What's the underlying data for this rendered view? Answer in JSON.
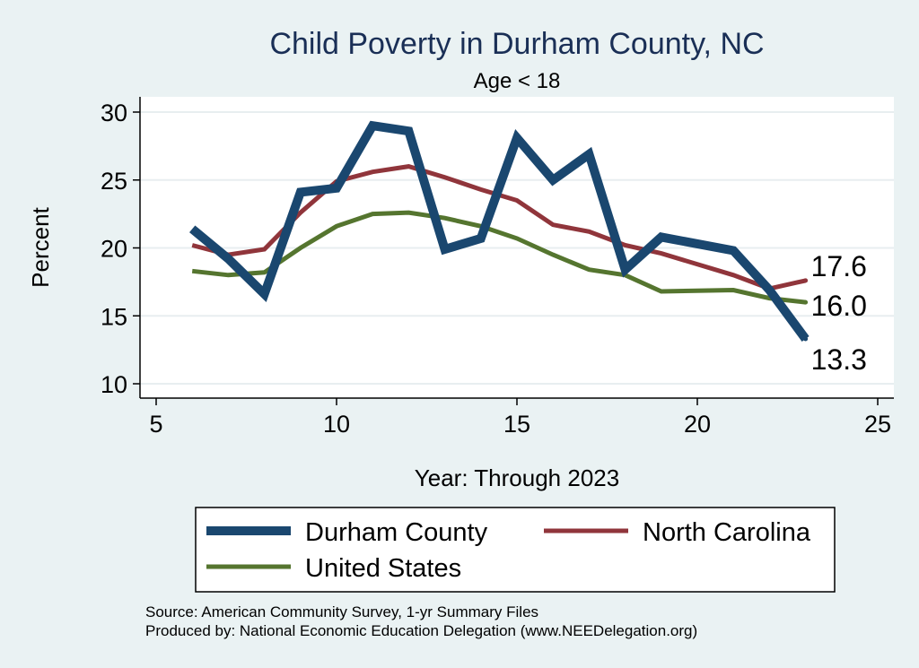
{
  "chart_data": {
    "type": "line",
    "title": "Child Poverty in Durham County, NC",
    "subtitle": "Age < 18",
    "xlabel": "Year: Through 2023",
    "ylabel": "Percent",
    "xlim": [
      5,
      25
    ],
    "ylim": [
      10,
      30
    ],
    "xticks": [
      5,
      10,
      15,
      20,
      25
    ],
    "yticks": [
      10,
      15,
      20,
      25,
      30
    ],
    "grid": true,
    "legend_position": "bottom",
    "series": [
      {
        "name": "Durham County",
        "color": "#1a476f",
        "points": [
          [
            6,
            21.4
          ],
          [
            7,
            19.2
          ],
          [
            8,
            16.6
          ],
          [
            9,
            24.1
          ],
          [
            10,
            24.4
          ],
          [
            11,
            29.0
          ],
          [
            12,
            28.6
          ],
          [
            13,
            19.9
          ],
          [
            14,
            20.7
          ],
          [
            15,
            28.1
          ],
          [
            16,
            25.0
          ],
          [
            17,
            26.9
          ],
          [
            18,
            18.4
          ],
          [
            19,
            20.8
          ],
          [
            21,
            19.8
          ],
          [
            22,
            16.9
          ],
          [
            23,
            13.3
          ]
        ],
        "end_label": "13.3"
      },
      {
        "name": "North Carolina",
        "color": "#90353b",
        "points": [
          [
            6,
            20.2
          ],
          [
            7,
            19.5
          ],
          [
            8,
            19.9
          ],
          [
            9,
            22.6
          ],
          [
            10,
            24.9
          ],
          [
            11,
            25.6
          ],
          [
            12,
            26.0
          ],
          [
            13,
            25.2
          ],
          [
            14,
            24.3
          ],
          [
            15,
            23.5
          ],
          [
            16,
            21.7
          ],
          [
            17,
            21.2
          ],
          [
            18,
            20.2
          ],
          [
            19,
            19.6
          ],
          [
            21,
            18.0
          ],
          [
            22,
            17.0
          ],
          [
            23,
            17.6
          ]
        ],
        "end_label": "17.6"
      },
      {
        "name": "United States",
        "color": "#55752f",
        "points": [
          [
            6,
            18.3
          ],
          [
            7,
            18.0
          ],
          [
            8,
            18.2
          ],
          [
            9,
            20.0
          ],
          [
            10,
            21.6
          ],
          [
            11,
            22.5
          ],
          [
            12,
            22.6
          ],
          [
            13,
            22.2
          ],
          [
            14,
            21.6
          ],
          [
            15,
            20.7
          ],
          [
            16,
            19.5
          ],
          [
            17,
            18.4
          ],
          [
            18,
            18.0
          ],
          [
            19,
            16.8
          ],
          [
            21,
            16.9
          ],
          [
            22,
            16.3
          ],
          [
            23,
            16.0
          ]
        ],
        "end_label": "16.0"
      }
    ],
    "source_lines": [
      "Source: American Community Survey, 1-yr Summary Files",
      "Produced by: National Economic Education Delegation (www.NEEDelegation.org)"
    ]
  }
}
